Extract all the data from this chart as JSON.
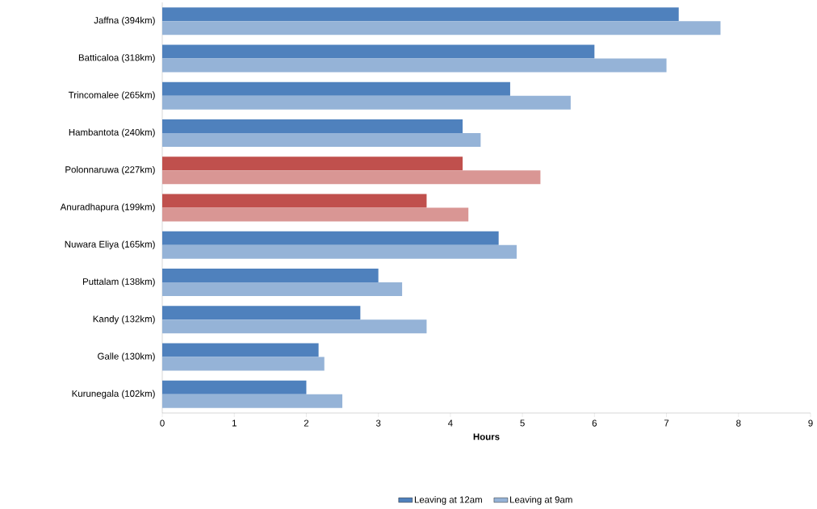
{
  "chart_data": {
    "type": "bar",
    "orientation": "horizontal",
    "xlabel": "Hours",
    "categories": [
      "Jaffna (394km)",
      "Batticaloa (318km)",
      "Trincomalee (265km)",
      "Hambantota (240km)",
      "Polonnaruwa (227km)",
      "Anuradhapura (199km)",
      "Nuwara Eliya (165km)",
      "Puttalam (138km)",
      "Kandy (132km)",
      "Galle (130km)",
      "Kurunegala (102km)"
    ],
    "series": [
      {
        "name": "Leaving at 12am",
        "color": "#4f81bd",
        "colors": [
          "#4f81bd",
          "#4f81bd",
          "#4f81bd",
          "#4f81bd",
          "#c0504d",
          "#c0504d",
          "#4f81bd",
          "#4f81bd",
          "#4f81bd",
          "#4f81bd",
          "#4f81bd"
        ],
        "values": [
          7.17,
          6.0,
          4.83,
          4.17,
          4.17,
          3.67,
          4.67,
          3.0,
          2.75,
          2.17,
          2.0
        ]
      },
      {
        "name": "Leaving at 9am",
        "color": "#95b3d7",
        "colors": [
          "#95b3d7",
          "#95b3d7",
          "#95b3d7",
          "#95b3d7",
          "#d99694",
          "#d99694",
          "#95b3d7",
          "#95b3d7",
          "#95b3d7",
          "#95b3d7",
          "#95b3d7"
        ],
        "values": [
          7.75,
          7.0,
          5.67,
          4.42,
          5.25,
          4.25,
          4.92,
          3.33,
          3.67,
          2.25,
          2.5
        ]
      }
    ],
    "xlim": [
      0,
      9
    ],
    "xticks": [
      0,
      1,
      2,
      3,
      4,
      5,
      6,
      7,
      8,
      9
    ],
    "grid": false,
    "legend": "bottom"
  }
}
